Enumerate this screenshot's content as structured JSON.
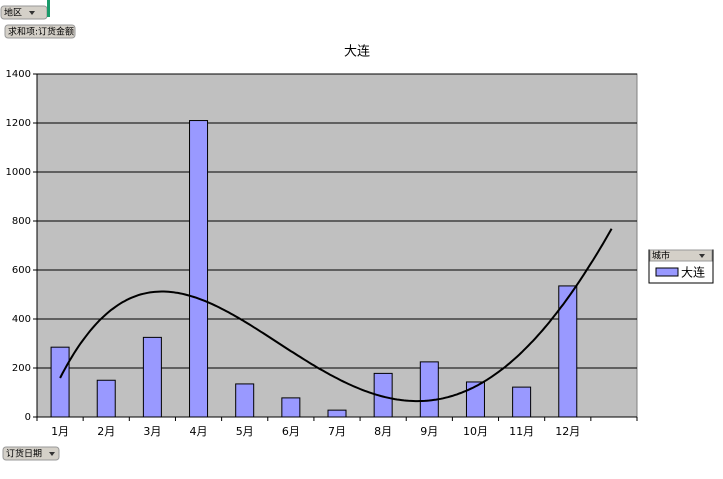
{
  "chart_data": {
    "type": "bar",
    "title": "大连",
    "page_field": "地区",
    "data_field": "求和项:订货金额",
    "category_field": "订货日期",
    "legend_title": "城市",
    "categories": [
      "1月",
      "2月",
      "3月",
      "4月",
      "5月",
      "6月",
      "7月",
      "8月",
      "9月",
      "10月",
      "11月",
      "12月",
      null
    ],
    "series": [
      {
        "name": "大连",
        "color": "#9999ff",
        "values": [
          285,
          150,
          325,
          1210,
          135,
          78,
          28,
          178,
          225,
          143,
          122,
          535,
          null
        ]
      }
    ],
    "trendline": {
      "type": "polynomial",
      "order": 4,
      "color": "#000000"
    },
    "ylim": [
      0,
      1400
    ],
    "yticks": [
      0,
      200,
      400,
      600,
      800,
      1000,
      1200,
      1400
    ],
    "grid": true,
    "plot_color": "#c0c0c0"
  }
}
